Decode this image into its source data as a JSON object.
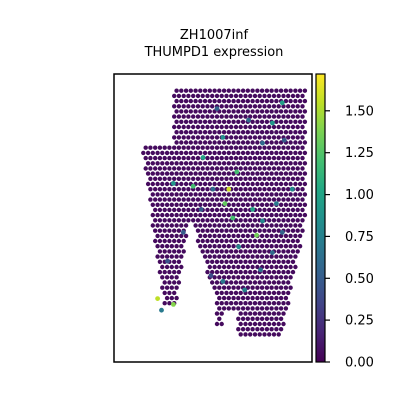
{
  "chart_data": {
    "type": "scatter",
    "title_lines": [
      "ZH1007inf",
      "THUMPD1 expression"
    ],
    "xlabel": "",
    "ylabel": "",
    "colorbar": {
      "colormap": "viridis",
      "range": [
        0,
        1.72
      ],
      "ticks": [
        0,
        0.25,
        0.5,
        0.75,
        1.0,
        1.25,
        1.5
      ],
      "tick_labels": [
        "0.00",
        "0.25",
        "0.50",
        "0.75",
        "1.00",
        "1.25",
        "1.50"
      ]
    },
    "grid": false,
    "legend": "none",
    "background_value": 0.05,
    "notable_spots": [
      {
        "x": 0.85,
        "y": 0.9,
        "value": 0.95
      },
      {
        "x": 0.45,
        "y": 0.71,
        "value": 1.0
      },
      {
        "x": 0.55,
        "y": 0.78,
        "value": 0.85
      },
      {
        "x": 0.62,
        "y": 0.66,
        "value": 1.2
      },
      {
        "x": 0.8,
        "y": 0.83,
        "value": 0.9
      },
      {
        "x": 0.5,
        "y": 0.6,
        "value": 0.6
      },
      {
        "x": 0.58,
        "y": 0.6,
        "value": 1.6
      },
      {
        "x": 0.56,
        "y": 0.55,
        "value": 1.3
      },
      {
        "x": 0.6,
        "y": 0.5,
        "value": 1.2
      },
      {
        "x": 0.7,
        "y": 0.53,
        "value": 1.0
      },
      {
        "x": 0.72,
        "y": 0.44,
        "value": 1.35
      },
      {
        "x": 0.75,
        "y": 0.49,
        "value": 0.8
      },
      {
        "x": 0.82,
        "y": 0.55,
        "value": 0.7
      },
      {
        "x": 0.4,
        "y": 0.61,
        "value": 1.2
      },
      {
        "x": 0.3,
        "y": 0.62,
        "value": 0.9
      },
      {
        "x": 0.22,
        "y": 0.22,
        "value": 1.55
      },
      {
        "x": 0.3,
        "y": 0.2,
        "value": 1.4
      },
      {
        "x": 0.24,
        "y": 0.18,
        "value": 0.7
      },
      {
        "x": 0.63,
        "y": 0.4,
        "value": 0.8
      },
      {
        "x": 0.55,
        "y": 0.28,
        "value": 0.7
      },
      {
        "x": 0.66,
        "y": 0.25,
        "value": 0.75
      },
      {
        "x": 0.74,
        "y": 0.32,
        "value": 0.65
      },
      {
        "x": 0.85,
        "y": 0.45,
        "value": 0.55
      },
      {
        "x": 0.9,
        "y": 0.6,
        "value": 0.8
      },
      {
        "x": 0.35,
        "y": 0.45,
        "value": 0.5
      },
      {
        "x": 0.44,
        "y": 0.53,
        "value": 0.5
      },
      {
        "x": 0.52,
        "y": 0.88,
        "value": 0.55
      },
      {
        "x": 0.68,
        "y": 0.84,
        "value": 0.6
      },
      {
        "x": 0.75,
        "y": 0.76,
        "value": 0.6
      },
      {
        "x": 0.86,
        "y": 0.77,
        "value": 0.5
      },
      {
        "x": 0.8,
        "y": 0.38,
        "value": 0.6
      },
      {
        "x": 0.27,
        "y": 0.35,
        "value": 0.45
      },
      {
        "x": 0.49,
        "y": 0.3,
        "value": 0.4
      }
    ]
  }
}
